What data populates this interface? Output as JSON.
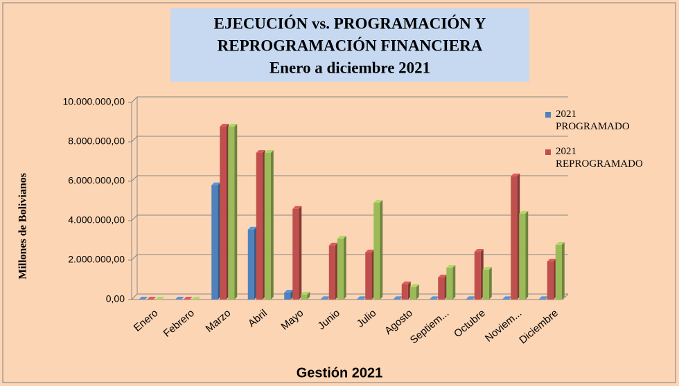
{
  "chart_data": {
    "type": "bar",
    "title": "EJECUCIÓN vs. PROGRAMACIÓN Y",
    "title_line2": "REPROGRAMACIÓN FINANCIERA",
    "subtitle": "Enero a diciembre 2021",
    "y_label": "Millones  de Bolivianos",
    "x_label": "Gestión 2021",
    "categories": [
      "Enero",
      "Febrero",
      "Marzo",
      "Abril",
      "Mayo",
      "Junio",
      "Julio",
      "Agosto",
      "Septiem...",
      "Octubre",
      "Noviem...",
      "Diciembre"
    ],
    "series": [
      {
        "name": "2021 PROGRAMADO",
        "color": "#4f81bd",
        "values": [
          0,
          0,
          5800000,
          3550000,
          350000,
          20000,
          20000,
          20000,
          20000,
          20000,
          20000,
          20000
        ]
      },
      {
        "name": "2021 REPROGRAMADO",
        "color": "#c0504d",
        "values": [
          0,
          0,
          8770000,
          7440000,
          4600000,
          2740000,
          2390000,
          770000,
          1120000,
          2420000,
          6250000,
          1930000
        ]
      },
      {
        "color": "#9bbb59",
        "values": [
          0,
          0,
          8770000,
          7440000,
          250000,
          3090000,
          4910000,
          630000,
          1610000,
          1510000,
          4350000,
          2770000
        ]
      }
    ],
    "ylim": [
      0,
      10000000
    ],
    "yticks": [
      {
        "value": 0,
        "label": "0,00"
      },
      {
        "value": 2000000,
        "label": "2.000.000,00"
      },
      {
        "value": 4000000,
        "label": "4.000.000,00"
      },
      {
        "value": 6000000,
        "label": "6.000.000,00"
      },
      {
        "value": 8000000,
        "label": "8.000.000,00"
      },
      {
        "value": 10000000,
        "label": "10.000.000,00"
      }
    ],
    "grid": true
  }
}
